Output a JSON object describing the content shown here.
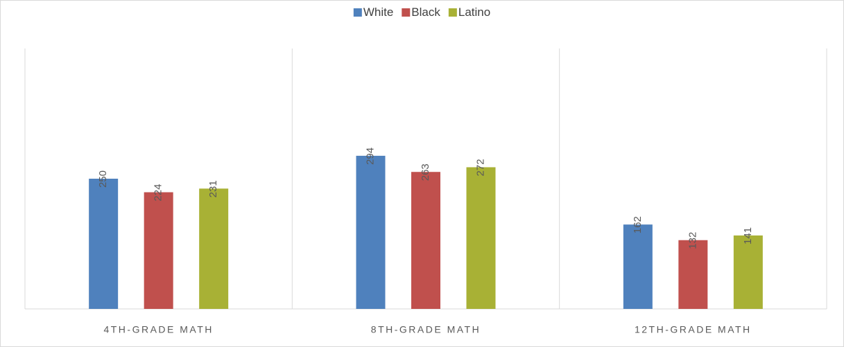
{
  "chart_data": {
    "type": "bar",
    "categories": [
      "4TH-GRADE MATH",
      "8TH-GRADE MATH",
      "12TH-GRADE MATH"
    ],
    "series": [
      {
        "name": "White",
        "color": "#4f81bd",
        "values": [
          250,
          294,
          162
        ]
      },
      {
        "name": "Black",
        "color": "#c0504d",
        "values": [
          224,
          263,
          132
        ]
      },
      {
        "name": "Latino",
        "color": "#a8b135",
        "values": [
          231,
          272,
          141
        ]
      }
    ],
    "ylim": [
      0,
      500
    ],
    "legend": "top"
  }
}
